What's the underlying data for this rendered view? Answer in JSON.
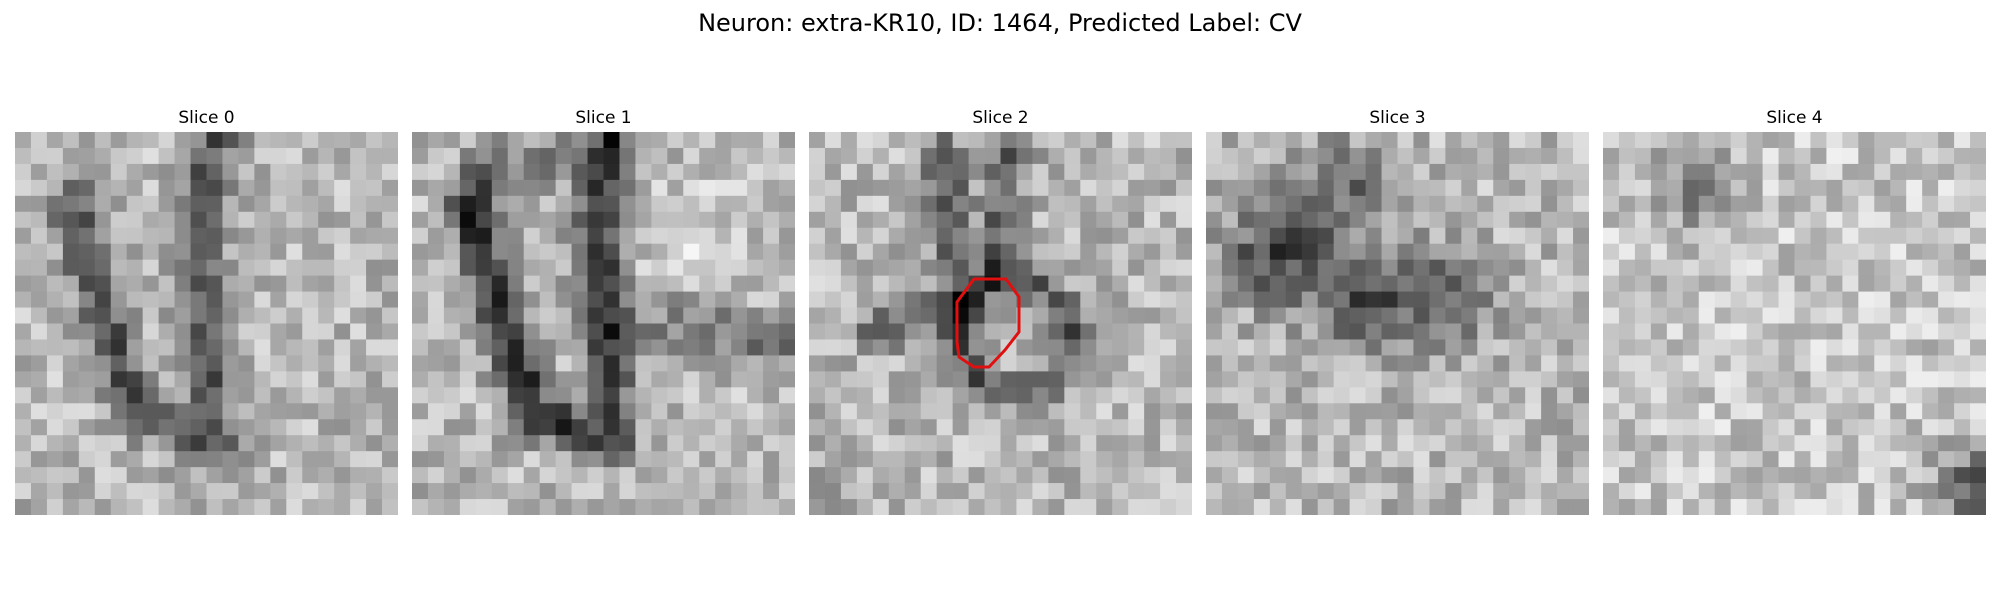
{
  "figure": {
    "title": "Neuron: extra-KR10, ID: 1464, Predicted Label: CV"
  },
  "panels": [
    {
      "label": "Slice 0",
      "pattern": "u-shape",
      "overlay": false
    },
    {
      "label": "Slice 1",
      "pattern": "u-shape-strong",
      "overlay": false
    },
    {
      "label": "Slice 2",
      "pattern": "ring",
      "overlay": true
    },
    {
      "label": "Slice 3",
      "pattern": "dark-cluster",
      "overlay": false
    },
    {
      "label": "Slice 4",
      "pattern": "faint-corner",
      "overlay": false
    }
  ],
  "style": {
    "overlay_color": "#e01010",
    "colormap": "grayscale"
  }
}
